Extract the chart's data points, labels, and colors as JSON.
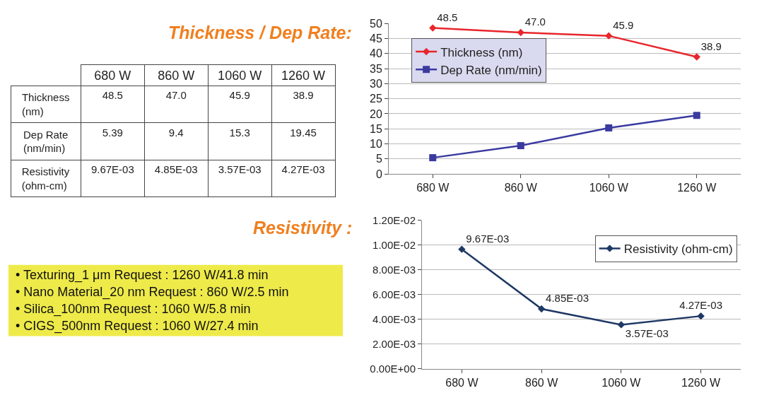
{
  "chart_data": [
    {
      "type": "other",
      "categories": [
        "680 W",
        "860 W",
        "1060 W",
        "1260 W"
      ],
      "y_categories": [
        "Thickness (nm)",
        "Dep Rate (nm/min)",
        "Resistivity (ohm-cm)"
      ],
      "cell_labels": [
        [
          "48.5",
          "47.0",
          "45.9",
          "38.9"
        ],
        [
          "5.39",
          "9.4",
          "15.3",
          "19.45"
        ],
        [
          "9.67E-03",
          "4.85E-03",
          "3.57E-03",
          "4.27E-03"
        ]
      ]
    },
    {
      "type": "line",
      "title": "Thickness / Dep Rate:",
      "categories": [
        "680 W",
        "860 W",
        "1060 W",
        "1260 W"
      ],
      "ylim": [
        0,
        50
      ],
      "yticks": [
        0,
        5,
        10,
        15,
        20,
        25,
        30,
        35,
        40,
        45,
        50
      ],
      "grid": "y",
      "legend": "top left",
      "series": [
        {
          "name": "Thickness (nm)",
          "color": "#e8262c",
          "marker": "diamond",
          "values": [
            48.5,
            47.0,
            45.9,
            38.9
          ],
          "value_labels": [
            "48.5",
            "47.0",
            "45.9",
            "38.9"
          ]
        },
        {
          "name": "Dep Rate (nm/min)",
          "color": "#3a3aa0",
          "marker": "square",
          "values": [
            5.39,
            9.4,
            15.3,
            19.45
          ]
        }
      ]
    },
    {
      "type": "line",
      "title": "Resistivity :",
      "categories": [
        "680 W",
        "860 W",
        "1060 W",
        "1260 W"
      ],
      "ylim": [
        0,
        0.012
      ],
      "yticks": [
        {
          "value": 0,
          "label": "0.00E+00"
        },
        {
          "value": 0.002,
          "label": "2.00E-03"
        },
        {
          "value": 0.004,
          "label": "4.00E-03"
        },
        {
          "value": 0.006,
          "label": "6.00E-03"
        },
        {
          "value": 0.008,
          "label": "8.00E-03"
        },
        {
          "value": 0.01,
          "label": "1.00E-02"
        },
        {
          "value": 0.012,
          "label": "1.20E-02"
        }
      ],
      "grid": "y",
      "legend": "top right",
      "series": [
        {
          "name": "Resistivity (ohm-cm)",
          "color": "#1f3864",
          "marker": "diamond",
          "values": [
            0.00967,
            0.00485,
            0.00357,
            0.00427
          ],
          "value_labels": [
            "9.67E-03",
            "4.85E-03",
            "3.57E-03",
            "4.27E-03"
          ]
        }
      ]
    },
    {
      "type": "other",
      "color": "#eeea4a",
      "annotations": [
        "• Texturing_1 μm Request : 1260 W/41.8 min",
        "• Nano Material_20 nm Request : 860 W/2.5 min",
        "• Silica_100nm Request : 1060 W/5.8 min",
        "• CIGS_500nm Request : 1060 W/27.4 min"
      ]
    }
  ]
}
